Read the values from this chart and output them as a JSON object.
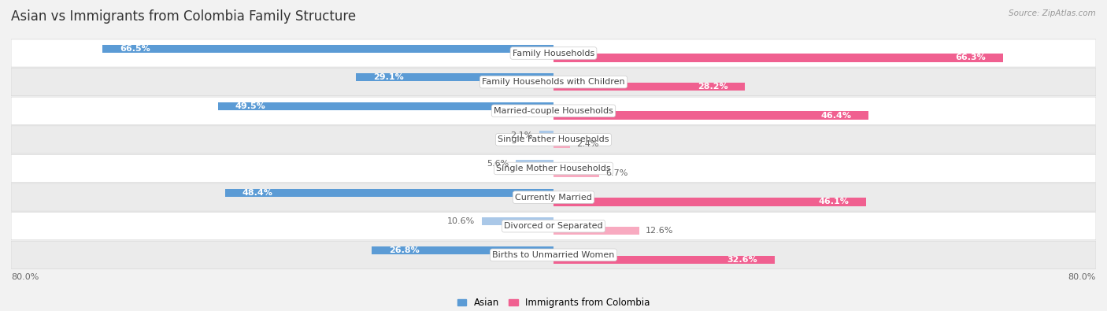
{
  "title": "Asian vs Immigrants from Colombia Family Structure",
  "source": "Source: ZipAtlas.com",
  "categories": [
    "Family Households",
    "Family Households with Children",
    "Married-couple Households",
    "Single Father Households",
    "Single Mother Households",
    "Currently Married",
    "Divorced or Separated",
    "Births to Unmarried Women"
  ],
  "asian_values": [
    66.5,
    29.1,
    49.5,
    2.1,
    5.6,
    48.4,
    10.6,
    26.8
  ],
  "colombia_values": [
    66.3,
    28.2,
    46.4,
    2.4,
    6.7,
    46.1,
    12.6,
    32.6
  ],
  "asian_color_dark": "#5b9bd5",
  "asian_color_light": "#aac8e8",
  "colombia_color_dark": "#f06090",
  "colombia_color_light": "#f8aac0",
  "axis_max": 80.0,
  "legend_asian": "Asian",
  "legend_colombia": "Immigrants from Colombia",
  "title_fontsize": 12,
  "label_fontsize": 8,
  "value_fontsize": 8,
  "background_color": "#f2f2f2",
  "row_colors": [
    "#ffffff",
    "#ebebeb"
  ],
  "row_border_color": "#d8d8d8",
  "center_box_color": "#ffffff",
  "center_box_border": "#cccccc"
}
